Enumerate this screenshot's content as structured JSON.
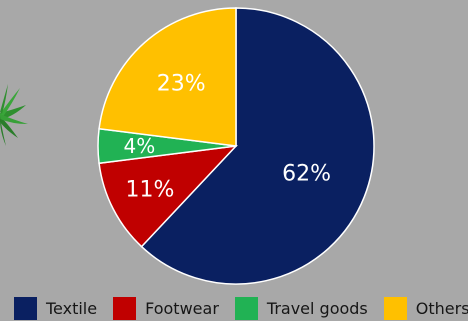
{
  "chart_data": {
    "type": "pie",
    "categories": [
      "Textile",
      "Footwear",
      "Travel goods",
      "Others"
    ],
    "values": [
      62,
      11,
      4,
      23
    ],
    "data_labels": [
      "62%",
      "11%",
      "4%",
      "23%"
    ],
    "colors": [
      "#0a2061",
      "#c00000",
      "#21b254",
      "#ffc000"
    ],
    "legend_position": "bottom",
    "start_angle_deg": 0,
    "direction": "clockwise",
    "label_color": "#ffffff",
    "background": "#a8a8a8"
  },
  "legend": {
    "items": [
      {
        "label": "Textile",
        "color": "#0a2061"
      },
      {
        "label": "Footwear",
        "color": "#c00000"
      },
      {
        "label": "Travel goods",
        "color": "#21b254"
      },
      {
        "label": "Others",
        "color": "#ffc000"
      }
    ]
  },
  "decoration": {
    "icon": "palm-leaf-icon"
  }
}
